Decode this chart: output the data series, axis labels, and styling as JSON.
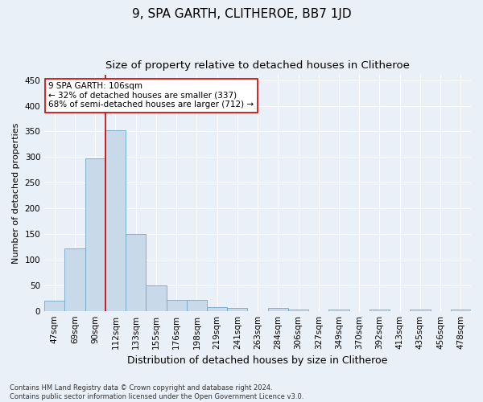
{
  "title": "9, SPA GARTH, CLITHEROE, BB7 1JD",
  "subtitle": "Size of property relative to detached houses in Clitheroe",
  "xlabel": "Distribution of detached houses by size in Clitheroe",
  "ylabel": "Number of detached properties",
  "bar_labels": [
    "47sqm",
    "69sqm",
    "90sqm",
    "112sqm",
    "133sqm",
    "155sqm",
    "176sqm",
    "198sqm",
    "219sqm",
    "241sqm",
    "263sqm",
    "284sqm",
    "306sqm",
    "327sqm",
    "349sqm",
    "370sqm",
    "392sqm",
    "413sqm",
    "435sqm",
    "456sqm",
    "478sqm"
  ],
  "bar_values": [
    20,
    122,
    297,
    352,
    150,
    50,
    22,
    22,
    8,
    6,
    0,
    5,
    2,
    0,
    2,
    0,
    3,
    0,
    2,
    0,
    3
  ],
  "bar_color": "#c8d9ea",
  "bar_edge_color": "#6fa8c8",
  "vline_x": 2.5,
  "vline_color": "#cc0000",
  "annotation_text": "9 SPA GARTH: 106sqm\n← 32% of detached houses are smaller (337)\n68% of semi-detached houses are larger (712) →",
  "annotation_box_color": "#ffffff",
  "annotation_box_edge_color": "#cc0000",
  "ylim": [
    0,
    460
  ],
  "yticks": [
    0,
    50,
    100,
    150,
    200,
    250,
    300,
    350,
    400,
    450
  ],
  "footer_line1": "Contains HM Land Registry data © Crown copyright and database right 2024.",
  "footer_line2": "Contains public sector information licensed under the Open Government Licence v3.0.",
  "bg_color": "#eaf0f8",
  "plot_bg_color": "#eaf0f8",
  "grid_color": "#ffffff",
  "title_fontsize": 11,
  "subtitle_fontsize": 9.5,
  "tick_fontsize": 7.5,
  "ylabel_fontsize": 8,
  "xlabel_fontsize": 9,
  "annotation_fontsize": 7.5,
  "footer_fontsize": 6
}
